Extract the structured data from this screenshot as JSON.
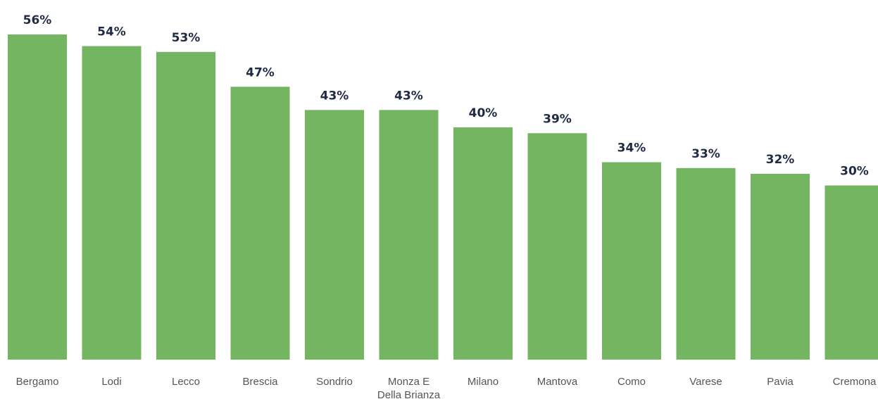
{
  "chart_data": {
    "type": "bar",
    "categories": [
      [
        "Bergamo"
      ],
      [
        "Lodi"
      ],
      [
        "Lecco"
      ],
      [
        "Brescia"
      ],
      [
        "Sondrio"
      ],
      [
        "Monza E",
        "Della Brianza"
      ],
      [
        "Milano"
      ],
      [
        "Mantova"
      ],
      [
        "Como"
      ],
      [
        "Varese"
      ],
      [
        "Pavia"
      ],
      [
        "Cremona"
      ]
    ],
    "values": [
      56,
      54,
      53,
      47,
      43,
      43,
      40,
      39,
      34,
      33,
      32,
      30
    ],
    "value_labels": [
      "56%",
      "54%",
      "53%",
      "47%",
      "43%",
      "43%",
      "40%",
      "39%",
      "34%",
      "33%",
      "32%",
      "30%"
    ],
    "title": "",
    "xlabel": "",
    "ylabel": "",
    "ylim": [
      0,
      60
    ],
    "grid": false,
    "legend": "none",
    "bar_color": "#74b562",
    "label_color": "#1f2a44"
  }
}
